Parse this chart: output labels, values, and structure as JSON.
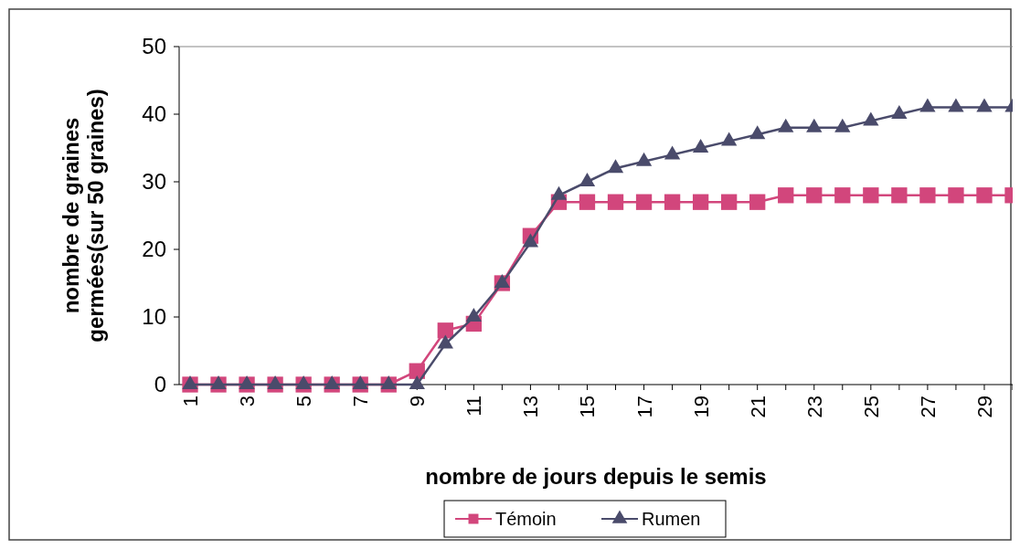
{
  "chart_data": {
    "type": "line",
    "xlabel": "nombre de jours depuis le semis",
    "ylabel": "nombre de graines germées(sur 50 graines)",
    "categories": [
      "1",
      null,
      "3",
      null,
      "5",
      null,
      "7",
      null,
      "9",
      null,
      "11",
      null,
      "13",
      null,
      "15",
      null,
      "17",
      null,
      "19",
      null,
      "21",
      null,
      "23",
      null,
      "25",
      null,
      "27",
      null,
      "29",
      null
    ],
    "series": [
      {
        "name": "Témoin",
        "color": "#d2467c",
        "marker": "square",
        "values": [
          0,
          0,
          0,
          0,
          0,
          0,
          0,
          0,
          2,
          8,
          9,
          15,
          22,
          27,
          27,
          27,
          27,
          27,
          27,
          27,
          27,
          28,
          28,
          28,
          28,
          28,
          28,
          28,
          28,
          28
        ]
      },
      {
        "name": "Rumen",
        "color": "#4a4b6b",
        "marker": "triangle",
        "values": [
          0,
          0,
          0,
          0,
          0,
          0,
          0,
          0,
          0,
          6,
          10,
          15,
          21,
          28,
          30,
          32,
          33,
          34,
          35,
          36,
          37,
          38,
          38,
          38,
          39,
          40,
          41,
          41,
          41,
          41
        ]
      }
    ],
    "ylim": [
      0,
      50
    ],
    "yticks": [
      0,
      10,
      20,
      30,
      40,
      50
    ],
    "legend": "bottom",
    "grid": false
  }
}
